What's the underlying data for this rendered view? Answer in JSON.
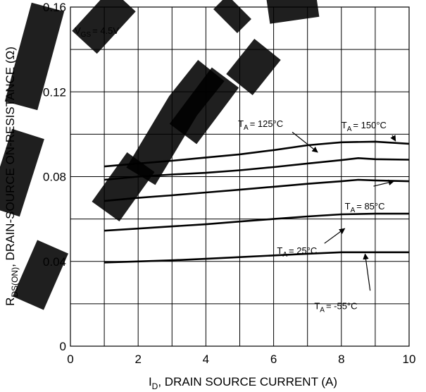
{
  "chart_data": {
    "type": "line",
    "xlabel_prefix": "I",
    "xlabel_sub": "D",
    "xlabel_suffix": ", DRAIN SOURCE CURRENT (A)",
    "ylabel_prefix": "R",
    "ylabel_sub": "DS(ON)",
    "ylabel_suffix": ", DRAIN-SOURCE ON-RESISTANCE (Ω)",
    "xlim": [
      0,
      10
    ],
    "ylim": [
      0,
      0.16
    ],
    "x_ticks": [
      "0",
      "2",
      "4",
      "6",
      "8",
      "10"
    ],
    "y_ticks": [
      "0",
      "0.04",
      "0.08",
      "0.12",
      "0.16"
    ],
    "grid": true,
    "condition": {
      "prefix": "V",
      "sub": "GS",
      "suffix": "= 4.5V"
    },
    "series": [
      {
        "name_prefix": "T",
        "name_sub": "A",
        "name_suffix": "= -55°C",
        "x": [
          1,
          2,
          3,
          4,
          5,
          6,
          7,
          8,
          9,
          10
        ],
        "y": [
          0.0395,
          0.04,
          0.0405,
          0.0412,
          0.042,
          0.0428,
          0.0436,
          0.0443,
          0.0443,
          0.0443
        ]
      },
      {
        "name_prefix": "T",
        "name_sub": "A",
        "name_suffix": "= 25°C",
        "x": [
          1,
          2,
          3,
          4,
          5,
          6,
          7,
          8,
          9,
          10
        ],
        "y": [
          0.0545,
          0.0555,
          0.0565,
          0.0575,
          0.0588,
          0.06,
          0.0612,
          0.0622,
          0.0625,
          0.0625
        ]
      },
      {
        "name_prefix": "T",
        "name_sub": "A",
        "name_suffix": "= 85°C",
        "x": [
          1,
          2,
          3,
          4,
          5,
          6,
          7,
          8,
          8.5,
          9,
          10
        ],
        "y": [
          0.0685,
          0.07,
          0.0712,
          0.0725,
          0.0738,
          0.0752,
          0.0766,
          0.0778,
          0.0785,
          0.0782,
          0.0778
        ]
      },
      {
        "name_prefix": "T",
        "name_sub": "A",
        "name_suffix": "= 125°C",
        "x": [
          1,
          2,
          3,
          4,
          5,
          6,
          7,
          8,
          8.5,
          9,
          10
        ],
        "y": [
          0.0785,
          0.08,
          0.081,
          0.0818,
          0.083,
          0.0845,
          0.0862,
          0.0878,
          0.0887,
          0.0882,
          0.088
        ]
      },
      {
        "name_prefix": "T",
        "name_sub": "A",
        "name_suffix": "= 150°C",
        "x": [
          1,
          2,
          3,
          4,
          5,
          6,
          7,
          8,
          9,
          10
        ],
        "y": [
          0.0848,
          0.0862,
          0.0875,
          0.089,
          0.0905,
          0.0925,
          0.0948,
          0.0962,
          0.0965,
          0.0955
        ]
      }
    ]
  }
}
